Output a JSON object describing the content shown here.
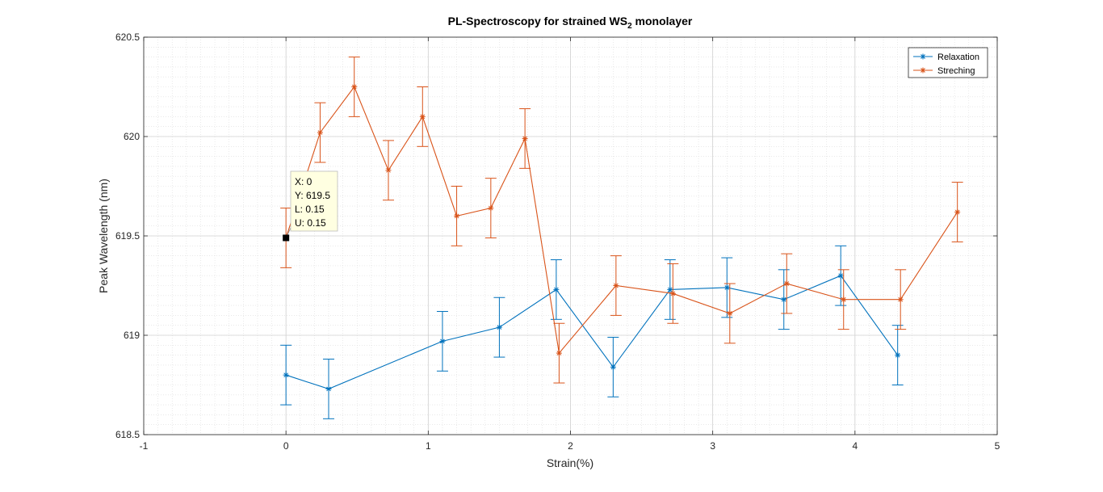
{
  "chart_data": {
    "type": "line",
    "title_main": "PL-Spectroscopy for strained WS",
    "title_sub": "2",
    "title_tail": " monolayer",
    "xlabel": "Strain(%)",
    "ylabel": "Peak Wavelength (nm)",
    "xlim": [
      -1,
      5
    ],
    "ylim": [
      618.5,
      620.5
    ],
    "xticks": [
      -1,
      0,
      1,
      2,
      3,
      4,
      5
    ],
    "yticks": [
      618.5,
      619,
      619.5,
      620,
      620.5
    ],
    "grid": true,
    "minor_grid": true,
    "legend_position": "top-right",
    "series": [
      {
        "name": "Relaxation",
        "color": "#0072BD",
        "marker": "asterisk",
        "x": [
          0,
          0.3,
          1.1,
          1.5,
          1.9,
          2.3,
          2.7,
          3.1,
          3.5,
          3.9,
          4.3
        ],
        "y": [
          618.8,
          618.73,
          618.97,
          619.04,
          619.23,
          618.84,
          619.23,
          619.24,
          619.18,
          619.3,
          618.9
        ],
        "err": [
          0.15,
          0.15,
          0.15,
          0.15,
          0.15,
          0.15,
          0.15,
          0.15,
          0.15,
          0.15,
          0.15
        ]
      },
      {
        "name": "Streching",
        "color": "#D95319",
        "marker": "asterisk",
        "x": [
          0,
          0.24,
          0.48,
          0.72,
          0.96,
          1.2,
          1.44,
          1.68,
          1.92,
          2.32,
          2.72,
          3.12,
          3.52,
          3.92,
          4.32,
          4.72
        ],
        "y": [
          619.49,
          620.02,
          620.25,
          619.83,
          620.1,
          619.6,
          619.64,
          619.99,
          618.91,
          619.25,
          619.21,
          619.11,
          619.26,
          619.18,
          619.18,
          619.62
        ],
        "err": [
          0.15,
          0.15,
          0.15,
          0.15,
          0.15,
          0.15,
          0.15,
          0.15,
          0.15,
          0.15,
          0.15,
          0.15,
          0.15,
          0.15,
          0.15,
          0.15
        ]
      }
    ],
    "datatip": {
      "x": 0,
      "y": 619.49,
      "lines": [
        "X: 0",
        "Y: 619.5",
        "L: 0.15",
        "U: 0.15"
      ]
    }
  }
}
